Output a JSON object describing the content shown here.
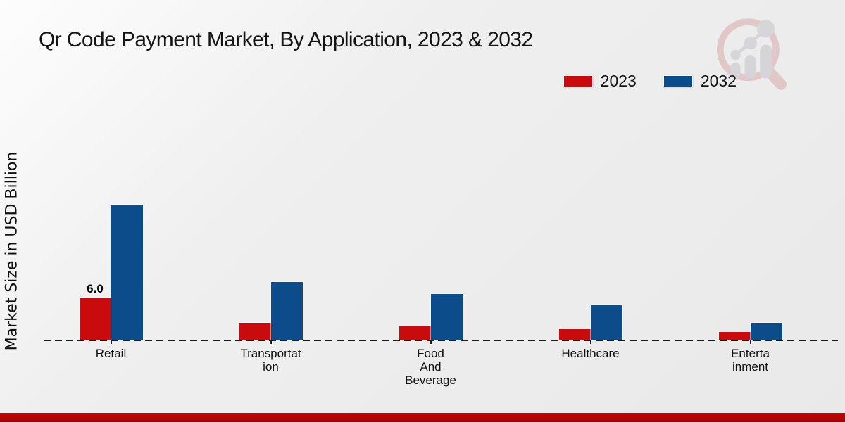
{
  "title": "Qr Code Payment Market, By Application, 2023 & 2032",
  "ylabel": "Market Size in USD Billion",
  "legend": {
    "position": "top-right",
    "items": [
      {
        "label": "2023",
        "color": "#c90b0d"
      },
      {
        "label": "2032",
        "color": "#0d4c8a"
      }
    ]
  },
  "watermark_icon": "magnifier-bar-chart-logo",
  "footer_band_color": "#b20606",
  "chart_data": {
    "type": "bar",
    "title": "Qr Code Payment Market, By Application, 2023 & 2032",
    "xlabel": "",
    "ylabel": "Market Size in USD Billion",
    "categories": [
      "Retail",
      "Transportation",
      "Food And Beverage",
      "Healthcare",
      "Entertainment"
    ],
    "category_label_lines": [
      "Retail",
      "Transportat\nion",
      "Food\nAnd\nBeverage",
      "Healthcare",
      "Enterta\ninment"
    ],
    "series": [
      {
        "name": "2023",
        "color": "#c90b0d",
        "values": [
          6.0,
          2.5,
          2.0,
          1.6,
          1.2
        ]
      },
      {
        "name": "2032",
        "color": "#0d4c8a",
        "values": [
          19.0,
          8.2,
          6.5,
          5.0,
          2.5
        ]
      }
    ],
    "bar_value_labels": [
      {
        "category": "Retail",
        "series": "2023",
        "label": "6.0"
      }
    ],
    "ylim": [
      0,
      20
    ],
    "grid": false,
    "baseline_style": "dashed",
    "legend_position": "top-right"
  }
}
